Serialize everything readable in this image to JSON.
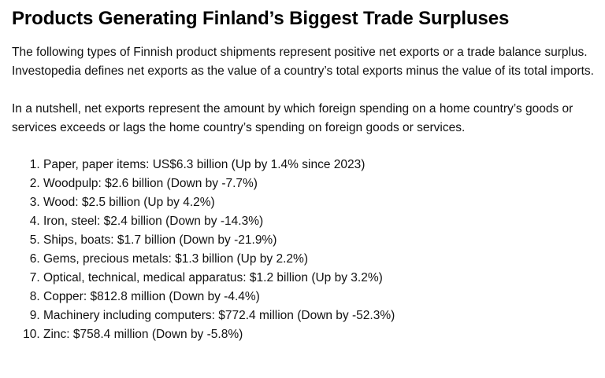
{
  "article": {
    "title": "Products Generating Finland’s Biggest Trade Surpluses",
    "intro": "The following types of Finnish product shipments represent positive net exports or a trade balance surplus. Investopedia defines net exports as the value of a country’s total exports minus the value of its total imports.",
    "nutshell": "In a nutshell, net exports represent the amount by which foreign spending on a home country’s goods or services exceeds or lags the home country’s spending on foreign goods or services.",
    "items": [
      "Paper, paper items: US$6.3 billion (Up by 1.4% since 2023)",
      "Woodpulp: $2.6 billion (Down by -7.7%)",
      "Wood: $2.5 billion (Up by 4.2%)",
      "Iron, steel: $2.4 billion (Down by -14.3%)",
      "Ships, boats: $1.7 billion (Down by -21.9%)",
      "Gems, precious metals: $1.3 billion (Up by 2.2%)",
      "Optical, technical, medical apparatus: $1.2 billion (Up by 3.2%)",
      "Copper: $812.8 million (Down by -4.4%)",
      "Machinery including computers: $772.4 million (Down by -52.3%)",
      "Zinc: $758.4 million (Down by -5.8%)"
    ]
  }
}
